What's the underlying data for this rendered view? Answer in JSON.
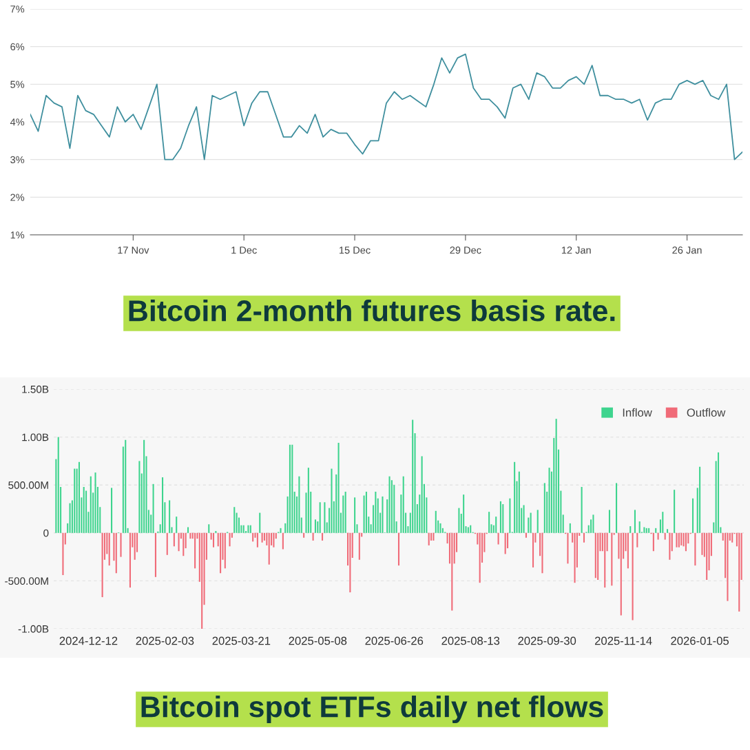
{
  "chart_data": [
    {
      "type": "line",
      "title": "Bitcoin 2-month futures basis rate.",
      "color": "#3f8f9e",
      "grid": "y",
      "marker": "none",
      "line_style": "solid",
      "x": [
        "2025-11-04",
        "2025-11-05",
        "2025-11-06",
        "2025-11-07",
        "2025-11-08",
        "2025-11-09",
        "2025-11-10",
        "2025-11-11",
        "2025-11-12",
        "2025-11-13",
        "2025-11-14",
        "2025-11-15",
        "2025-11-16",
        "2025-11-17",
        "2025-11-18",
        "2025-11-19",
        "2025-11-20",
        "2025-11-21",
        "2025-11-22",
        "2025-11-23",
        "2025-11-24",
        "2025-11-25",
        "2025-11-26",
        "2025-11-27",
        "2025-11-28",
        "2025-11-29",
        "2025-11-30",
        "2025-12-01",
        "2025-12-02",
        "2025-12-03",
        "2025-12-04",
        "2025-12-05",
        "2025-12-06",
        "2025-12-07",
        "2025-12-08",
        "2025-12-09",
        "2025-12-10",
        "2025-12-11",
        "2025-12-12",
        "2025-12-13",
        "2025-12-14",
        "2025-12-15",
        "2025-12-16",
        "2025-12-17",
        "2025-12-18",
        "2025-12-19",
        "2025-12-20",
        "2025-12-21",
        "2025-12-22",
        "2025-12-23",
        "2025-12-24",
        "2025-12-25",
        "2025-12-26",
        "2025-12-27",
        "2025-12-28",
        "2025-12-29",
        "2025-12-30",
        "2025-12-31",
        "2026-01-01",
        "2026-01-02",
        "2026-01-03",
        "2026-01-04",
        "2026-01-05",
        "2026-01-06",
        "2026-01-07",
        "2026-01-08",
        "2026-01-09",
        "2026-01-10",
        "2026-01-11",
        "2026-01-12",
        "2026-01-13",
        "2026-01-14",
        "2026-01-15",
        "2026-01-16",
        "2026-01-17",
        "2026-01-18",
        "2026-01-19",
        "2026-01-20",
        "2026-01-21",
        "2026-01-22",
        "2026-01-23",
        "2026-01-24",
        "2026-01-25",
        "2026-01-26",
        "2026-01-27",
        "2026-01-28",
        "2026-01-29",
        "2026-01-30",
        "2026-01-31",
        "2026-02-01",
        "2026-02-02"
      ],
      "values": [
        4.2,
        3.75,
        4.7,
        4.5,
        4.4,
        3.3,
        4.7,
        4.3,
        4.2,
        3.9,
        3.6,
        4.4,
        4.0,
        4.2,
        3.8,
        4.4,
        5.0,
        3.0,
        3.0,
        3.3,
        3.9,
        4.4,
        3.0,
        4.7,
        4.6,
        4.7,
        4.8,
        3.9,
        4.5,
        4.8,
        4.8,
        4.2,
        3.6,
        3.6,
        3.9,
        3.7,
        4.2,
        3.6,
        3.8,
        3.7,
        3.7,
        3.4,
        3.15,
        3.5,
        3.5,
        4.5,
        4.8,
        4.6,
        4.7,
        4.55,
        4.4,
        5.0,
        5.7,
        5.3,
        5.7,
        5.8,
        4.9,
        4.6,
        4.6,
        4.4,
        4.1,
        4.9,
        5.0,
        4.6,
        5.3,
        5.2,
        4.9,
        4.9,
        5.1,
        5.2,
        5.0,
        5.5,
        4.7,
        4.7,
        4.6,
        4.6,
        4.5,
        4.6,
        4.05,
        4.5,
        4.6,
        4.6,
        5.0,
        5.1,
        5.0,
        5.1,
        4.7,
        4.6,
        5.0,
        3.0,
        3.2
      ],
      "xlim": [
        "2025-11-04",
        "2026-02-02"
      ],
      "xticks": [
        {
          "value": "2025-11-17",
          "label": "17 Nov"
        },
        {
          "value": "2025-12-01",
          "label": "1 Dec"
        },
        {
          "value": "2025-12-15",
          "label": "15 Dec"
        },
        {
          "value": "2025-12-29",
          "label": "29 Dec"
        },
        {
          "value": "2026-01-12",
          "label": "12 Jan"
        },
        {
          "value": "2026-01-26",
          "label": "26 Jan"
        }
      ],
      "ylim": [
        1,
        7
      ],
      "yticks": [
        {
          "value": 1,
          "label": "1%"
        },
        {
          "value": 2,
          "label": "2%"
        },
        {
          "value": 3,
          "label": "3%"
        },
        {
          "value": 4,
          "label": "4%"
        },
        {
          "value": 5,
          "label": "5%"
        },
        {
          "value": 6,
          "label": "6%"
        },
        {
          "value": 7,
          "label": "7%"
        }
      ]
    },
    {
      "type": "bar",
      "title": "Bitcoin spot ETFs daily net flows",
      "grid": "y",
      "legend": "top right",
      "categories": [
        null,
        null,
        null,
        null,
        null,
        null,
        null,
        null,
        null,
        null,
        null,
        null,
        null,
        null,
        "2024-12-12",
        null,
        null,
        null,
        null,
        null,
        null,
        null,
        null,
        null,
        null,
        null,
        null,
        null,
        null,
        null,
        null,
        null,
        null,
        null,
        null,
        null,
        null,
        null,
        null,
        null,
        null,
        null,
        null,
        null,
        null,
        null,
        null,
        "2025-02-03",
        null,
        null,
        null,
        null,
        null,
        null,
        null,
        null,
        null,
        null,
        null,
        null,
        null,
        null,
        null,
        null,
        null,
        null,
        null,
        null,
        null,
        null,
        null,
        null,
        null,
        null,
        null,
        null,
        null,
        null,
        null,
        null,
        "2025-03-21",
        null,
        null,
        null,
        null,
        null,
        null,
        null,
        null,
        null,
        null,
        null,
        null,
        null,
        null,
        null,
        null,
        null,
        null,
        null,
        null,
        null,
        null,
        null,
        null,
        null,
        null,
        null,
        null,
        null,
        null,
        null,
        null,
        "2025-05-08",
        null,
        null,
        null,
        null,
        null,
        null,
        null,
        null,
        null,
        null,
        null,
        null,
        null,
        null,
        null,
        null,
        null,
        null,
        null,
        null,
        null,
        null,
        null,
        null,
        null,
        null,
        null,
        null,
        null,
        null,
        null,
        null,
        "2025-06-26",
        null,
        null,
        null,
        null,
        null,
        null,
        null,
        null,
        null,
        null,
        null,
        null,
        null,
        null,
        null,
        null,
        null,
        null,
        null,
        null,
        null,
        null,
        null,
        null,
        null,
        null,
        null,
        null,
        null,
        null,
        null,
        null,
        "2025-08-13",
        null,
        null,
        null,
        null,
        null,
        null,
        null,
        null,
        null,
        null,
        null,
        null,
        null,
        null,
        null,
        null,
        null,
        null,
        null,
        null,
        null,
        null,
        null,
        null,
        null,
        null,
        null,
        null,
        null,
        null,
        null,
        null,
        "2025-09-30",
        null,
        null,
        null,
        null,
        null,
        null,
        null,
        null,
        null,
        null,
        null,
        null,
        null,
        null,
        null,
        null,
        null,
        null,
        null,
        null,
        null,
        null,
        null,
        null,
        null,
        null,
        null,
        null,
        null,
        null,
        null,
        null,
        "2025-11-14",
        null,
        null,
        null,
        null,
        null,
        null,
        null,
        null,
        null,
        null,
        null,
        null,
        null,
        null,
        null,
        null,
        null,
        null,
        null,
        null,
        null,
        null,
        null,
        null,
        null,
        null,
        null,
        null,
        null,
        null,
        null,
        null,
        "2026-01-05",
        null,
        null,
        null,
        null,
        null,
        null,
        null,
        null,
        null,
        null,
        null,
        null,
        null,
        null,
        null,
        null,
        null,
        null
      ],
      "series": [
        {
          "name": "Inflow",
          "color": "#3ed48e",
          "values": [
            770000000.0,
            1000000000.0,
            480000000.0,
            null,
            null,
            100000000.0,
            310000000.0,
            340000000.0,
            670000000.0,
            670000000.0,
            740000000.0,
            370000000.0,
            480000000.0,
            440000000.0,
            220000000.0,
            590000000.0,
            420000000.0,
            630000000.0,
            480000000.0,
            270000000.0,
            null,
            null,
            null,
            null,
            470000000.0,
            null,
            null,
            5000000.0,
            null,
            900000000.0,
            970000000.0,
            50000000.0,
            null,
            null,
            null,
            null,
            750000000.0,
            620000000.0,
            970000000.0,
            800000000.0,
            240000000.0,
            190000000.0,
            510000000.0,
            null,
            15000000.0,
            90000000.0,
            580000000.0,
            320000000.0,
            null,
            340000000.0,
            60000000.0,
            null,
            170000000.0,
            null,
            null,
            null,
            null,
            60000000.0,
            null,
            null,
            null,
            null,
            null,
            null,
            null,
            null,
            90000000.0,
            null,
            null,
            20000000.0,
            null,
            null,
            null,
            null,
            10000000.0,
            null,
            null,
            270000000.0,
            210000000.0,
            160000000.0,
            80000000.0,
            80000000.0,
            20000000.0,
            80000000.0,
            80000000.0,
            null,
            null,
            null,
            210000000.0,
            null,
            null,
            null,
            null,
            null,
            null,
            null,
            10000000.0,
            50000000.0,
            null,
            100000000.0,
            380000000.0,
            920000000.0,
            920000000.0,
            430000000.0,
            380000000.0,
            590000000.0,
            160000000.0,
            null,
            420000000.0,
            680000000.0,
            430000000.0,
            null,
            140000000.0,
            120000000.0,
            320000000.0,
            null,
            320000000.0,
            110000000.0,
            260000000.0,
            670000000.0,
            330000000.0,
            610000000.0,
            940000000.0,
            210000000.0,
            390000000.0,
            430000000.0,
            null,
            null,
            null,
            370000000.0,
            90000000.0,
            null,
            null,
            390000000.0,
            430000000.0,
            170000000.0,
            90000000.0,
            290000000.0,
            430000000.0,
            360000000.0,
            210000000.0,
            380000000.0,
            5000000.0,
            350000000.0,
            590000000.0,
            550000000.0,
            500000000.0,
            120000000.0,
            null,
            400000000.0,
            590000000.0,
            210000000.0,
            70000000.0,
            210000000.0,
            1180000000.0,
            1040000000.0,
            300000000.0,
            400000000.0,
            800000000.0,
            510000000.0,
            370000000.0,
            null,
            null,
            null,
            230000000.0,
            130000000.0,
            100000000.0,
            50000000.0,
            10000000.0,
            null,
            null,
            null,
            null,
            null,
            260000000.0,
            200000000.0,
            400000000.0,
            70000000.0,
            60000000.0,
            80000000.0,
            8000000.0,
            null,
            null,
            null,
            null,
            null,
            null,
            220000000.0,
            90000000.0,
            80000000.0,
            170000000.0,
            null,
            330000000.0,
            300000000.0,
            null,
            null,
            360000000.0,
            10000000.0,
            740000000.0,
            540000000.0,
            640000000.0,
            260000000.0,
            290000000.0,
            null,
            160000000.0,
            210000000.0,
            null,
            null,
            240000000.0,
            null,
            null,
            520000000.0,
            430000000.0,
            680000000.0,
            640000000.0,
            990000000.0,
            1190000000.0,
            870000000.0,
            440000000.0,
            190000000.0,
            null,
            null,
            100000000.0,
            null,
            null,
            null,
            null,
            480000000.0,
            null,
            10000000.0,
            80000000.0,
            140000000.0,
            190000000.0,
            null,
            null,
            null,
            null,
            null,
            null,
            240000000.0,
            null,
            null,
            520000000.0,
            null,
            null,
            null,
            null,
            null,
            70000000.0,
            null,
            240000000.0,
            null,
            120000000.0,
            10000000.0,
            60000000.0,
            50000000.0,
            50000000.0,
            null,
            null,
            50000000.0,
            null,
            140000000.0,
            220000000.0,
            null,
            40000000.0,
            null,
            null,
            450000000.0,
            null,
            null,
            null,
            null,
            null,
            null,
            null,
            360000000.0,
            null,
            470000000.0,
            690000000.0,
            null,
            null,
            null,
            null,
            null,
            110000000.0,
            750000000.0,
            840000000.0,
            60000000.0,
            null,
            null,
            null,
            null,
            null,
            null,
            null,
            null,
            null
          ]
        },
        {
          "name": "Outflow",
          "color": "#f06b78",
          "values": [
            null,
            null,
            null,
            -440000000.0,
            -120000000.0,
            null,
            null,
            null,
            null,
            null,
            null,
            null,
            null,
            null,
            null,
            null,
            null,
            null,
            null,
            null,
            -670000000.0,
            -280000000.0,
            -220000000.0,
            -340000000.0,
            null,
            -290000000.0,
            -420000000.0,
            null,
            -250000000.0,
            null,
            null,
            null,
            -570000000.0,
            -150000000.0,
            -280000000.0,
            -200000000.0,
            null,
            null,
            null,
            null,
            null,
            null,
            null,
            -460000000.0,
            null,
            null,
            null,
            null,
            -230000000.0,
            null,
            null,
            -140000000.0,
            null,
            -190000000.0,
            -60000000.0,
            -240000000.0,
            -160000000.0,
            null,
            -60000000.0,
            -60000000.0,
            -370000000.0,
            -60000000.0,
            -510000000.0,
            -1000000000.0,
            -750000000.0,
            -280000000.0,
            null,
            -70000000.0,
            -150000000.0,
            null,
            -140000000.0,
            -420000000.0,
            -280000000.0,
            -370000000.0,
            null,
            -140000000.0,
            -50000000.0,
            null,
            null,
            null,
            null,
            null,
            null,
            null,
            null,
            -90000000.0,
            -50000000.0,
            -150000000.0,
            null,
            -100000000.0,
            -80000000.0,
            -130000000.0,
            -330000000.0,
            -130000000.0,
            -150000000.0,
            -60000000.0,
            null,
            null,
            -170000000.0,
            null,
            null,
            null,
            null,
            null,
            null,
            null,
            null,
            -50000000.0,
            null,
            null,
            null,
            -80000000.0,
            null,
            null,
            null,
            -80000000.0,
            null,
            null,
            null,
            null,
            null,
            null,
            null,
            null,
            null,
            null,
            -340000000.0,
            -620000000.0,
            -260000000.0,
            null,
            null,
            -280000000.0,
            -40000000.0,
            null,
            null,
            null,
            null,
            null,
            null,
            null,
            null,
            null,
            null,
            null,
            null,
            null,
            null,
            null,
            -340000000.0,
            null,
            null,
            null,
            null,
            null,
            null,
            null,
            null,
            null,
            null,
            null,
            null,
            -130000000.0,
            -80000000.0,
            -80000000.0,
            null,
            null,
            null,
            null,
            null,
            -110000000.0,
            -320000000.0,
            -810000000.0,
            -320000000.0,
            -200000000.0,
            null,
            null,
            null,
            null,
            null,
            null,
            null,
            -10000000.0,
            -120000000.0,
            -520000000.0,
            -310000000.0,
            -200000000.0,
            -10000000.0,
            null,
            null,
            null,
            null,
            -120000000.0,
            null,
            null,
            -220000000.0,
            -160000000.0,
            null,
            null,
            null,
            null,
            null,
            null,
            null,
            -50000000.0,
            null,
            null,
            -360000000.0,
            -100000000.0,
            null,
            -240000000.0,
            -420000000.0,
            null,
            null,
            null,
            null,
            null,
            null,
            null,
            null,
            null,
            -10000000.0,
            -320000000.0,
            null,
            -100000000.0,
            -520000000.0,
            -360000000.0,
            -30000000.0,
            null,
            -100000000.0,
            null,
            null,
            null,
            null,
            -470000000.0,
            -490000000.0,
            -190000000.0,
            -190000000.0,
            -570000000.0,
            -190000000.0,
            null,
            -550000000.0,
            -20000000.0,
            null,
            -270000000.0,
            -860000000.0,
            -270000000.0,
            -190000000.0,
            -370000000.0,
            null,
            -910000000.0,
            null,
            -150000000.0,
            null,
            null,
            null,
            null,
            null,
            -10000000.0,
            -190000000.0,
            null,
            -70000000.0,
            null,
            null,
            -70000000.0,
            null,
            -280000000.0,
            -190000000.0,
            null,
            -150000000.0,
            -150000000.0,
            -130000000.0,
            -140000000.0,
            -190000000.0,
            -110000000.0,
            -10000000.0,
            null,
            -340000000.0,
            null,
            null,
            -230000000.0,
            -250000000.0,
            -490000000.0,
            -390000000.0,
            -240000000.0,
            null,
            null,
            null,
            null,
            -80000000.0,
            -470000000.0,
            -710000000.0,
            -80000000.0,
            -100000000.0,
            -10000000.0,
            -140000000.0,
            -820000000.0,
            -490000000.0
          ]
        }
      ],
      "ylim": [
        -1000000000.0,
        1500000000.0
      ],
      "yticks": [
        {
          "value": -1000000000.0,
          "label": "-1.00B"
        },
        {
          "value": -500000000.0,
          "label": "-500.00M"
        },
        {
          "value": 0,
          "label": "0"
        },
        {
          "value": 500000000.0,
          "label": "500.00M"
        },
        {
          "value": 1000000000.0,
          "label": "1.00B"
        },
        {
          "value": 1500000000.0,
          "label": "1.50B"
        }
      ]
    }
  ]
}
